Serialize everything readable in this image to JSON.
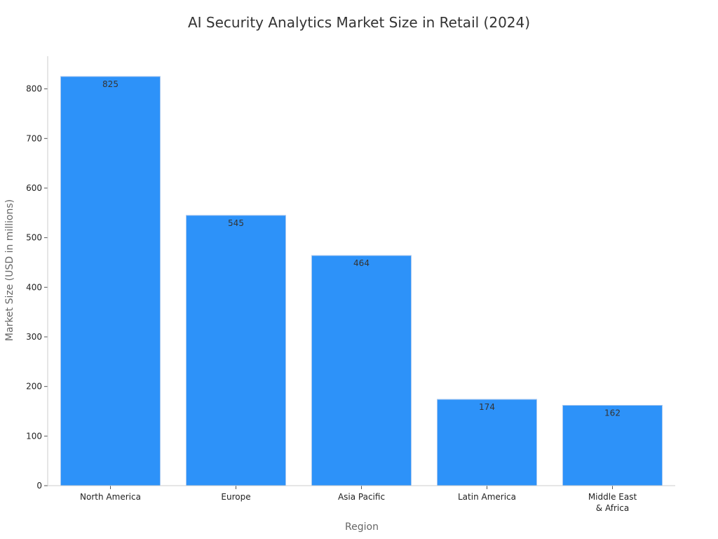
{
  "chart_data": {
    "type": "bar",
    "title": "AI Security Analytics Market Size in Retail (2024)",
    "xlabel": "Region",
    "ylabel": "Market Size (USD in millions)",
    "categories": [
      [
        "North America"
      ],
      [
        "Europe"
      ],
      [
        "Asia Pacific"
      ],
      [
        "Latin America"
      ],
      [
        "Middle East",
        "& Africa"
      ]
    ],
    "values": [
      825,
      545,
      464,
      174,
      162
    ],
    "data_labels": [
      "825",
      "545",
      "464",
      "174",
      "162"
    ],
    "yticks": [
      0,
      100,
      200,
      300,
      400,
      500,
      600,
      700,
      800
    ],
    "ylim": [
      0,
      866
    ],
    "grid": false,
    "legend": "none",
    "bar_color": "#2d92f9",
    "bar_edge_color": "#a9c8ef"
  }
}
